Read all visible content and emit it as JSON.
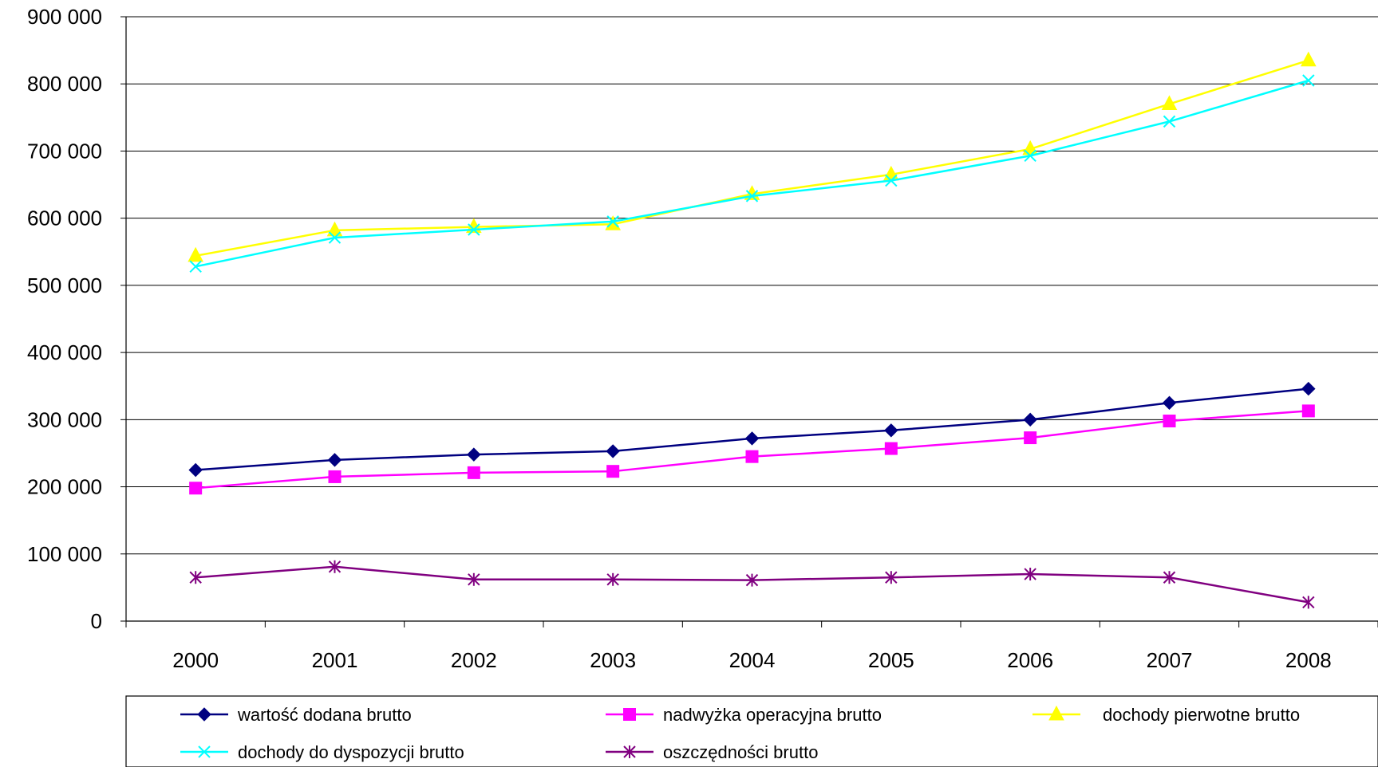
{
  "chart_data": {
    "type": "line",
    "title": "",
    "xlabel": "",
    "ylabel": "",
    "categories": [
      "2000",
      "2001",
      "2002",
      "2003",
      "2004",
      "2005",
      "2006",
      "2007",
      "2008"
    ],
    "ylim": [
      0,
      900000
    ],
    "y_ticks": [
      0,
      100000,
      200000,
      300000,
      400000,
      500000,
      600000,
      700000,
      800000,
      900000
    ],
    "y_tick_labels": [
      "0",
      "100 000",
      "200 000",
      "300 000",
      "400 000",
      "500 000",
      "600 000",
      "700 000",
      "800 000",
      "900 000"
    ],
    "grid": true,
    "legend_position": "bottom",
    "series": [
      {
        "name": "wartość dodana brutto",
        "color": "#000080",
        "marker": "diamond",
        "values": [
          225000,
          240000,
          248000,
          253000,
          272000,
          284000,
          300000,
          325000,
          346000
        ]
      },
      {
        "name": "nadwyżka operacyjna brutto",
        "color": "#FF00FF",
        "marker": "square",
        "values": [
          198000,
          215000,
          221000,
          223000,
          245000,
          257000,
          273000,
          298000,
          313000
        ]
      },
      {
        "name": "dochody pierwotne brutto",
        "color": "#FFFF00",
        "marker": "triangle",
        "values": [
          544000,
          582000,
          587000,
          591000,
          636000,
          665000,
          703000,
          770000,
          835000
        ]
      },
      {
        "name": "dochody do dyspozycji brutto",
        "color": "#00FFFF",
        "marker": "x",
        "values": [
          528000,
          571000,
          583000,
          595000,
          633000,
          656000,
          693000,
          744000,
          805000
        ]
      },
      {
        "name": "oszczędności brutto",
        "color": "#800080",
        "marker": "asterisk",
        "values": [
          65000,
          81000,
          62000,
          62000,
          61000,
          65000,
          70000,
          65000,
          28000
        ]
      }
    ]
  }
}
